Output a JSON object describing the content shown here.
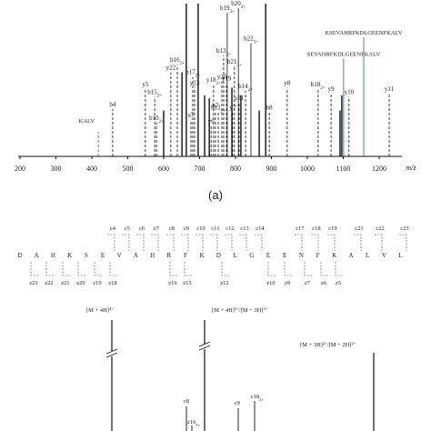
{
  "chart_data": {
    "type": "stem",
    "xlabel": "m/z",
    "xlim": [
      200,
      1260
    ],
    "xticks": [
      200,
      300,
      400,
      500,
      600,
      700,
      800,
      900,
      1000,
      1100,
      1200
    ],
    "ylim": [
      0,
      100
    ],
    "series": [
      {
        "color": "#111111",
        "x": [
          458,
          549,
          575,
          580,
          620,
          638,
          676,
          681,
          686,
          744,
          752,
          732,
          739,
          777,
          808,
          767,
          775,
          762,
          797,
          792,
          810,
          828,
          843,
          894,
          944,
          1030,
          1066,
          1116,
          1228,
          663,
          696,
          884,
          651,
          714,
          600,
          790,
          815,
          866,
          1096,
          1091,
          727
        ],
        "values": [
          31,
          44,
          39,
          22,
          55,
          60,
          24,
          52,
          45,
          30,
          29,
          20,
          47,
          94,
          97,
          66,
          48,
          49,
          59,
          29,
          35,
          43,
          74,
          29,
          45,
          44,
          41,
          39,
          41,
          100,
          100,
          100,
          55,
          40,
          30,
          45,
          40,
          30,
          40,
          30,
          38
        ],
        "labels": [
          "b4",
          "y5",
          "b15",
          "b10",
          "y22",
          "b16",
          "a7",
          "b17",
          "y23",
          "b7",
          "b12",
          "y6",
          "y18",
          "b19",
          "b20",
          "b13",
          "y19",
          "y20",
          "b21",
          "y7",
          "y21",
          "b14",
          "b22",
          "b8",
          "y8",
          "b18",
          "y9",
          "y10",
          "y11",
          null,
          null,
          null,
          null,
          null,
          null,
          null,
          null,
          null,
          null,
          null,
          null
        ],
        "charges": [
          null,
          null,
          "2+",
          "2+",
          null,
          "2+",
          null,
          "2+",
          null,
          null,
          "2+",
          null,
          "2+",
          "3+",
          "3+",
          "2+",
          null,
          null,
          "3+",
          null,
          null,
          "2+",
          "3+",
          null,
          null,
          "2+",
          null,
          null,
          null,
          null,
          null,
          null,
          null,
          null,
          null,
          null,
          null,
          null,
          null,
          null,
          null
        ]
      },
      {
        "color": "#2f5fa8",
        "x": [
          418,
          1101,
          1157
        ],
        "values": [
          16,
          64,
          78
        ],
        "labels": [
          "KALV",
          "SEVAHRFKDLGEENFKALV",
          "KSEVAHRFKDLGEENFKALV"
        ],
        "charges": [
          null,
          null,
          null
        ]
      }
    ]
  },
  "panel_label": "(a)",
  "sequence": {
    "residues": [
      "D",
      "A",
      "H",
      "K",
      "S",
      "E",
      "V",
      "A",
      "H",
      "R",
      "F",
      "K",
      "D",
      "L",
      "G",
      "E",
      "E",
      "N",
      "F",
      "K",
      "A",
      "L",
      "V",
      "L"
    ],
    "c_ions": [
      "c4",
      "c5",
      "c6",
      "c7",
      "c8",
      "c9",
      "c10",
      "c11",
      "c12",
      "c13",
      "c14",
      "c17",
      "c18",
      "c19",
      "c21",
      "c22",
      "c23"
    ],
    "z_ions": [
      "z23",
      "z22",
      "z21",
      "z20",
      "z19",
      "z18",
      "z16",
      "z15",
      "z12",
      "z10",
      "z9",
      "z7",
      "z6",
      "z5"
    ]
  },
  "etd_spectrum": {
    "labels": [
      [
        {
          "ion": "[M + 4H]",
          "charge": "4+"
        }
      ],
      [
        {
          "ion": "[M + 4H]",
          "charge": "3+"
        },
        {
          "ion": "/[M + 3H]",
          "charge": "3+"
        }
      ],
      [
        {
          "ion": "[M + 3H]",
          "charge": "2+"
        },
        {
          "ion": "/[M + 2H]",
          "charge": "2+"
        }
      ],
      [
        {
          "ion": "c8",
          "charge": null
        }
      ],
      [
        {
          "ion": "z16",
          "charge": "3+"
        }
      ],
      [
        {
          "ion": "c9",
          "charge": null
        }
      ],
      [
        {
          "ion": "c18",
          "charge": "2+"
        }
      ]
    ]
  }
}
